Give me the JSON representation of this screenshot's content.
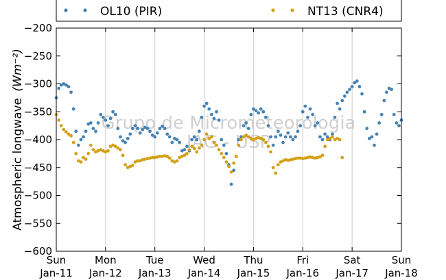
{
  "chart_data": {
    "type": "scatter",
    "ylabel_text": "Atmospheric longwave",
    "ylabel_unit": "(Wm⁻²)",
    "ylim": [
      -600,
      -200
    ],
    "yticks": [
      -200,
      -250,
      -300,
      -350,
      -400,
      -450,
      -500,
      -550,
      -600
    ],
    "ytick_labels": [
      "−200",
      "−250",
      "−300",
      "−350",
      "−400",
      "−450",
      "−500",
      "−550",
      "−600"
    ],
    "xlim": [
      0,
      7
    ],
    "xticks": [
      {
        "pos": 0,
        "day": "Sun",
        "date": "Jan-11"
      },
      {
        "pos": 1,
        "day": "Mon",
        "date": "Jan-12"
      },
      {
        "pos": 2,
        "day": "Tue",
        "date": "Jan-13"
      },
      {
        "pos": 3,
        "day": "Wed",
        "date": "Jan-14"
      },
      {
        "pos": 4,
        "day": "Thu",
        "date": "Jan-15"
      },
      {
        "pos": 5,
        "day": "Fri",
        "date": "Jan-16"
      },
      {
        "pos": 6,
        "day": "Sat",
        "date": "Jan-17"
      },
      {
        "pos": 7,
        "day": "Sun",
        "date": "Jan-18"
      }
    ],
    "grid": "vertical",
    "legend_placement": "top",
    "watermark_lines": [
      "Grupo de Micrometeorologia",
      "IAG - USP"
    ],
    "series": [
      {
        "name": "OL10 (PIR)",
        "color": "#4682b4",
        "points": [
          [
            0.0,
            -325
          ],
          [
            0.05,
            -308
          ],
          [
            0.1,
            -302
          ],
          [
            0.15,
            -300
          ],
          [
            0.2,
            -302
          ],
          [
            0.25,
            -305
          ],
          [
            0.3,
            -315
          ],
          [
            0.35,
            -345
          ],
          [
            0.4,
            -385
          ],
          [
            0.45,
            -410
          ],
          [
            0.5,
            -400
          ],
          [
            0.55,
            -395
          ],
          [
            0.6,
            -385
          ],
          [
            0.65,
            -372
          ],
          [
            0.7,
            -370
          ],
          [
            0.75,
            -380
          ],
          [
            0.8,
            -385
          ],
          [
            0.85,
            -370
          ],
          [
            0.9,
            -355
          ],
          [
            0.95,
            -360
          ],
          [
            1.0,
            -365
          ],
          [
            1.05,
            -375
          ],
          [
            1.1,
            -362
          ],
          [
            1.15,
            -350
          ],
          [
            1.2,
            -355
          ],
          [
            1.25,
            -380
          ],
          [
            1.3,
            -395
          ],
          [
            1.35,
            -402
          ],
          [
            1.4,
            -405
          ],
          [
            1.45,
            -398
          ],
          [
            1.5,
            -390
          ],
          [
            1.55,
            -380
          ],
          [
            1.6,
            -375
          ],
          [
            1.65,
            -380
          ],
          [
            1.7,
            -388
          ],
          [
            1.75,
            -382
          ],
          [
            1.8,
            -378
          ],
          [
            1.85,
            -380
          ],
          [
            1.9,
            -385
          ],
          [
            1.95,
            -392
          ],
          [
            2.0,
            -395
          ],
          [
            2.05,
            -388
          ],
          [
            2.1,
            -380
          ],
          [
            2.15,
            -376
          ],
          [
            2.2,
            -380
          ],
          [
            2.25,
            -390
          ],
          [
            2.3,
            -395
          ],
          [
            2.35,
            -405
          ],
          [
            2.4,
            -398
          ],
          [
            2.45,
            -400
          ],
          [
            2.5,
            -405
          ],
          [
            2.55,
            -420
          ],
          [
            2.6,
            -418
          ],
          [
            2.65,
            -412
          ],
          [
            2.7,
            -420
          ],
          [
            2.75,
            -400
          ],
          [
            2.8,
            -395
          ],
          [
            2.85,
            -400
          ],
          [
            2.9,
            -385
          ],
          [
            2.95,
            -360
          ],
          [
            3.0,
            -340
          ],
          [
            3.05,
            -335
          ],
          [
            3.1,
            -345
          ],
          [
            3.15,
            -355
          ],
          [
            3.2,
            -362
          ],
          [
            3.25,
            -350
          ],
          [
            3.3,
            -365
          ],
          [
            3.35,
            -400
          ],
          [
            3.4,
            -410
          ],
          [
            3.45,
            -425
          ],
          [
            3.5,
            -445
          ],
          [
            3.55,
            -480
          ],
          [
            3.6,
            -455
          ],
          [
            3.65,
            -430
          ],
          [
            3.7,
            -400
          ],
          [
            3.75,
            -395
          ],
          [
            3.8,
            -375
          ],
          [
            3.85,
            -370
          ],
          [
            3.9,
            -380
          ],
          [
            3.95,
            -355
          ],
          [
            4.0,
            -345
          ],
          [
            4.05,
            -348
          ],
          [
            4.1,
            -352
          ],
          [
            4.15,
            -345
          ],
          [
            4.2,
            -350
          ],
          [
            4.25,
            -360
          ],
          [
            4.3,
            -375
          ],
          [
            4.35,
            -395
          ],
          [
            4.4,
            -410
          ],
          [
            4.45,
            -395
          ],
          [
            4.5,
            -385
          ],
          [
            4.55,
            -392
          ],
          [
            4.6,
            -405
          ],
          [
            4.65,
            -395
          ],
          [
            4.7,
            -388
          ],
          [
            4.75,
            -395
          ],
          [
            4.8,
            -400
          ],
          [
            4.85,
            -395
          ],
          [
            4.9,
            -385
          ],
          [
            4.95,
            -375
          ],
          [
            5.0,
            -350
          ],
          [
            5.05,
            -340
          ],
          [
            5.1,
            -360
          ],
          [
            5.15,
            -345
          ],
          [
            5.2,
            -355
          ],
          [
            5.25,
            -375
          ],
          [
            5.3,
            -370
          ],
          [
            5.35,
            -395
          ],
          [
            5.4,
            -400
          ],
          [
            5.45,
            -390
          ],
          [
            5.5,
            -395
          ],
          [
            5.55,
            -400
          ],
          [
            5.6,
            -390
          ],
          [
            5.65,
            -360
          ],
          [
            5.7,
            -335
          ],
          [
            5.75,
            -345
          ],
          [
            5.8,
            -330
          ],
          [
            5.85,
            -322
          ],
          [
            5.9,
            -315
          ],
          [
            5.95,
            -310
          ],
          [
            6.0,
            -305
          ],
          [
            6.05,
            -298
          ],
          [
            6.1,
            -295
          ],
          [
            6.15,
            -305
          ],
          [
            6.2,
            -318
          ],
          [
            6.25,
            -350
          ],
          [
            6.3,
            -380
          ],
          [
            6.35,
            -398
          ],
          [
            6.4,
            -395
          ],
          [
            6.45,
            -410
          ],
          [
            6.5,
            -390
          ],
          [
            6.55,
            -370
          ],
          [
            6.6,
            -355
          ],
          [
            6.65,
            -330
          ],
          [
            6.7,
            -315
          ],
          [
            6.75,
            -308
          ],
          [
            6.8,
            -310
          ],
          [
            6.85,
            -355
          ],
          [
            6.9,
            -370
          ],
          [
            6.95,
            -375
          ],
          [
            7.0,
            -365
          ]
        ]
      },
      {
        "name": "NT13 (CNR4)",
        "color": "#d4a017",
        "points": [
          [
            0.0,
            -355
          ],
          [
            0.05,
            -365
          ],
          [
            0.1,
            -375
          ],
          [
            0.15,
            -382
          ],
          [
            0.2,
            -386
          ],
          [
            0.25,
            -390
          ],
          [
            0.3,
            -393
          ],
          [
            0.35,
            -405
          ],
          [
            0.4,
            -425
          ],
          [
            0.45,
            -438
          ],
          [
            0.5,
            -440
          ],
          [
            0.55,
            -432
          ],
          [
            0.6,
            -435
          ],
          [
            0.65,
            -425
          ],
          [
            0.7,
            -410
          ],
          [
            0.75,
            -418
          ],
          [
            0.8,
            -422
          ],
          [
            0.85,
            -420
          ],
          [
            0.9,
            -418
          ],
          [
            0.95,
            -420
          ],
          [
            1.0,
            -422
          ],
          [
            1.05,
            -420
          ],
          [
            1.1,
            -412
          ],
          [
            1.15,
            -410
          ],
          [
            1.2,
            -412
          ],
          [
            1.25,
            -415
          ],
          [
            1.3,
            -418
          ],
          [
            1.35,
            -428
          ],
          [
            1.4,
            -445
          ],
          [
            1.45,
            -450
          ],
          [
            1.5,
            -448
          ],
          [
            1.55,
            -446
          ],
          [
            1.6,
            -440
          ],
          [
            1.65,
            -438
          ],
          [
            1.7,
            -438
          ],
          [
            1.75,
            -436
          ],
          [
            1.8,
            -435
          ],
          [
            1.85,
            -434
          ],
          [
            1.9,
            -433
          ],
          [
            1.95,
            -432
          ],
          [
            2.0,
            -432
          ],
          [
            2.05,
            -431
          ],
          [
            2.1,
            -430
          ],
          [
            2.15,
            -430
          ],
          [
            2.2,
            -429
          ],
          [
            2.25,
            -430
          ],
          [
            2.3,
            -433
          ],
          [
            2.35,
            -438
          ],
          [
            2.4,
            -440
          ],
          [
            2.45,
            -438
          ],
          [
            2.5,
            -432
          ],
          [
            2.55,
            -430
          ],
          [
            2.6,
            -428
          ],
          [
            2.65,
            -425
          ],
          [
            2.7,
            -418
          ],
          [
            2.75,
            -412
          ],
          [
            2.8,
            -416
          ],
          [
            2.85,
            -422
          ],
          [
            2.9,
            -415
          ],
          [
            2.95,
            -410
          ],
          [
            3.0,
            -400
          ],
          [
            3.05,
            -390
          ],
          [
            3.1,
            -398
          ],
          [
            3.15,
            -395
          ],
          [
            3.2,
            -405
          ],
          [
            3.25,
            -410
          ],
          [
            3.3,
            -418
          ],
          [
            3.35,
            -425
          ],
          [
            3.4,
            -432
          ],
          [
            3.45,
            -440
          ],
          [
            3.5,
            -448
          ],
          [
            3.55,
            -458
          ],
          [
            3.6,
            -442
          ],
          [
            3.65,
            -430
          ],
          [
            3.7,
            -410
          ],
          [
            3.75,
            -400
          ],
          [
            3.8,
            -395
          ],
          [
            3.85,
            -392
          ],
          [
            3.9,
            -395
          ],
          [
            3.95,
            -398
          ],
          [
            4.0,
            -400
          ],
          [
            4.05,
            -398
          ],
          [
            4.1,
            -396
          ],
          [
            4.15,
            -398
          ],
          [
            4.2,
            -400
          ],
          [
            4.25,
            -405
          ],
          [
            4.3,
            -412
          ],
          [
            4.35,
            -422
          ],
          [
            4.4,
            -450
          ],
          [
            4.45,
            -460
          ],
          [
            4.5,
            -445
          ],
          [
            4.55,
            -440
          ],
          [
            4.6,
            -438
          ],
          [
            4.65,
            -436
          ],
          [
            4.7,
            -437
          ],
          [
            4.75,
            -436
          ],
          [
            4.8,
            -435
          ],
          [
            4.85,
            -434
          ],
          [
            4.9,
            -433
          ],
          [
            4.95,
            -433
          ],
          [
            5.0,
            -434
          ],
          [
            5.05,
            -433
          ],
          [
            5.1,
            -432
          ],
          [
            5.15,
            -431
          ],
          [
            5.2,
            -432
          ],
          [
            5.25,
            -433
          ],
          [
            5.3,
            -432
          ],
          [
            5.35,
            -431
          ],
          [
            5.4,
            -428
          ],
          [
            5.45,
            -412
          ],
          [
            5.5,
            -400
          ],
          [
            5.55,
            -398
          ],
          [
            5.6,
            -395
          ],
          [
            5.65,
            -400
          ],
          [
            5.7,
            -398
          ],
          [
            5.75,
            -400
          ],
          [
            5.8,
            -432
          ]
        ]
      }
    ]
  }
}
